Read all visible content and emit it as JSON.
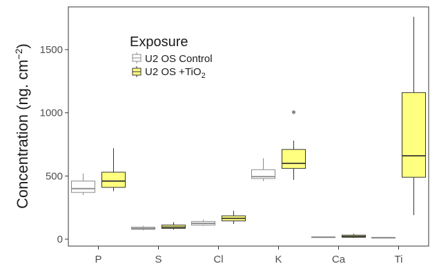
{
  "chart_data": {
    "type": "box",
    "ylabel": "Concentration (ng. cm",
    "ylabel_sup": "−2",
    "ylabel_end": ")",
    "ylim": [
      -60,
      1790
    ],
    "yticks": [
      0,
      500,
      1000,
      1500
    ],
    "grid": false,
    "categories": [
      "P",
      "S",
      "Cl",
      "K",
      "Ca",
      "Ti"
    ],
    "legend": {
      "title": "Exposure",
      "position": "top-left",
      "entries": [
        {
          "label": "U2 OS Control",
          "label_sub": "",
          "color": "#ffffff"
        },
        {
          "label": "U2 OS +TiO",
          "label_sub": "2",
          "color": "#ffff80"
        }
      ]
    },
    "series": [
      {
        "color": "#ffffff",
        "stroke": "#888888",
        "boxes": [
          {
            "category": "P",
            "min": 350,
            "q1": 370,
            "median": 400,
            "q3": 460,
            "max": 520,
            "outliers": []
          },
          {
            "category": "S",
            "min": 70,
            "q1": 78,
            "median": 85,
            "q3": 95,
            "max": 105,
            "outliers": []
          },
          {
            "category": "Cl",
            "min": 105,
            "q1": 112,
            "median": 125,
            "q3": 140,
            "max": 155,
            "outliers": []
          },
          {
            "category": "K",
            "min": 460,
            "q1": 480,
            "median": 495,
            "q3": 550,
            "max": 640,
            "outliers": []
          },
          {
            "category": "Ca",
            "min": 12,
            "q1": 14,
            "median": 16,
            "q3": 18,
            "max": 20,
            "outliers": []
          },
          {
            "category": "Ti",
            "min": 8,
            "q1": 10,
            "median": 12,
            "q3": 14,
            "max": 16,
            "outliers": []
          }
        ]
      },
      {
        "color": "#ffff80",
        "stroke": "#333333",
        "boxes": [
          {
            "category": "P",
            "min": 380,
            "q1": 410,
            "median": 460,
            "q3": 530,
            "max": 720,
            "outliers": []
          },
          {
            "category": "S",
            "min": 75,
            "q1": 85,
            "median": 95,
            "q3": 112,
            "max": 135,
            "outliers": []
          },
          {
            "category": "Cl",
            "min": 120,
            "q1": 145,
            "median": 165,
            "q3": 185,
            "max": 225,
            "outliers": []
          },
          {
            "category": "K",
            "min": 470,
            "q1": 560,
            "median": 600,
            "q3": 710,
            "max": 780,
            "outliers": [
              1005
            ]
          },
          {
            "category": "Ca",
            "min": 10,
            "q1": 15,
            "median": 22,
            "q3": 32,
            "max": 42,
            "outliers": []
          },
          {
            "category": "Ti",
            "min": 190,
            "q1": 490,
            "median": 660,
            "q3": 1160,
            "max": 1760,
            "outliers": []
          }
        ]
      }
    ]
  }
}
